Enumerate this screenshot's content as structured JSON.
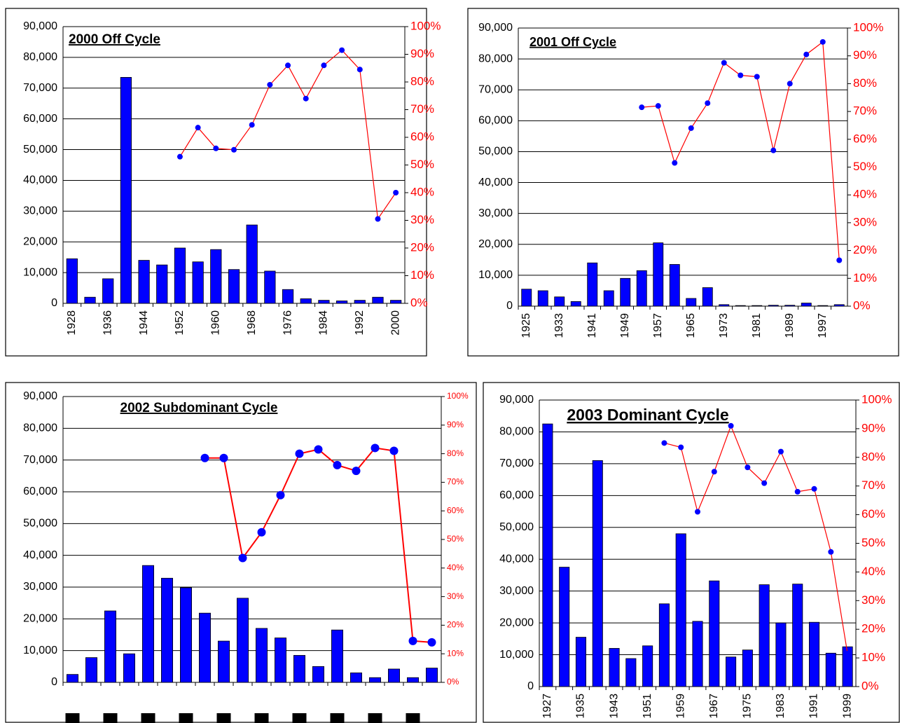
{
  "chart_data": [
    {
      "type": "combo",
      "title": "2000 Off Cycle",
      "categories": [
        "1928",
        null,
        "1936",
        null,
        "1944",
        null,
        "1952",
        null,
        "1960",
        null,
        "1968",
        null,
        "1976",
        null,
        "1984",
        null,
        "1992",
        null,
        "2000"
      ],
      "series": [
        {
          "color": "#0000ff",
          "values": [
            14500,
            2000,
            8000,
            73500,
            14000,
            12500,
            18000,
            13500,
            17500,
            11000,
            25500,
            10500,
            4500,
            1500,
            1000,
            800,
            1000,
            2000,
            1000
          ]
        },
        {
          "color": "#ff0000",
          "axis": "y2",
          "values": [
            null,
            null,
            null,
            null,
            null,
            null,
            53,
            63.5,
            56,
            55.5,
            64.5,
            79,
            86,
            74,
            86,
            91.5,
            84.5,
            30.5,
            40
          ]
        }
      ],
      "ylim": [
        0,
        90000
      ],
      "yticks": [
        0,
        {
          "value": 10000,
          "label": "10,000"
        },
        {
          "value": 20000,
          "label": "20,000"
        },
        {
          "value": 30000,
          "label": "30,000"
        },
        {
          "value": 40000,
          "label": "40,000"
        },
        {
          "value": 50000,
          "label": "50,000"
        },
        {
          "value": 60000,
          "label": "60,000"
        },
        {
          "value": 70000,
          "label": "70,000"
        },
        {
          "value": 80000,
          "label": "80,000"
        },
        {
          "value": 90000,
          "label": "90,000"
        }
      ],
      "y2lim": [
        0,
        100
      ],
      "y2ticks": [
        {
          "value": 0,
          "label": "0%"
        },
        {
          "value": 10,
          "label": "10%"
        },
        {
          "value": 20,
          "label": "20%"
        },
        {
          "value": 30,
          "label": "30%"
        },
        {
          "value": 40,
          "label": "40%"
        },
        {
          "value": 50,
          "label": "50%"
        },
        {
          "value": 60,
          "label": "60%"
        },
        {
          "value": 70,
          "label": "70%"
        },
        {
          "value": 80,
          "label": "80%"
        },
        {
          "value": 90,
          "label": "90%"
        },
        {
          "value": 100,
          "label": "100%"
        }
      ],
      "grid": true
    },
    {
      "type": "combo",
      "title": "2001 Off Cycle",
      "categories": [
        "1925",
        null,
        "1933",
        null,
        "1941",
        null,
        "1949",
        null,
        "1957",
        null,
        "1965",
        null,
        "1973",
        null,
        "1981",
        null,
        "1989",
        null,
        "1997",
        null
      ],
      "series": [
        {
          "color": "#0000ff",
          "values": [
            5500,
            5000,
            3000,
            1500,
            14000,
            5000,
            9000,
            11500,
            20500,
            13500,
            2500,
            6000,
            500,
            200,
            200,
            300,
            300,
            1000,
            200,
            500
          ]
        },
        {
          "color": "#ff0000",
          "axis": "y2",
          "values": [
            null,
            null,
            null,
            null,
            null,
            null,
            null,
            71.5,
            72,
            51.5,
            64,
            73,
            87.5,
            83,
            82.5,
            56,
            80,
            90.5,
            95,
            16.5
          ]
        }
      ],
      "ylim": [
        0,
        90000
      ],
      "yticks": [
        0,
        {
          "value": 10000,
          "label": "10,000"
        },
        {
          "value": 20000,
          "label": "20,000"
        },
        {
          "value": 30000,
          "label": "30,000"
        },
        {
          "value": 40000,
          "label": "40,000"
        },
        {
          "value": 50000,
          "label": "50,000"
        },
        {
          "value": 60000,
          "label": "60,000"
        },
        {
          "value": 70000,
          "label": "70,000"
        },
        {
          "value": 80000,
          "label": "80,000"
        },
        {
          "value": 90000,
          "label": "90,000"
        }
      ],
      "y2lim": [
        0,
        100
      ],
      "y2ticks": [
        {
          "value": 0,
          "label": "0%"
        },
        {
          "value": 10,
          "label": "10%"
        },
        {
          "value": 20,
          "label": "20%"
        },
        {
          "value": 30,
          "label": "30%"
        },
        {
          "value": 40,
          "label": "40%"
        },
        {
          "value": 50,
          "label": "50%"
        },
        {
          "value": 60,
          "label": "60%"
        },
        {
          "value": 70,
          "label": "70%"
        },
        {
          "value": 80,
          "label": "80%"
        },
        {
          "value": 90,
          "label": "90%"
        },
        {
          "value": 100,
          "label": "100%"
        }
      ],
      "grid": true
    },
    {
      "type": "combo",
      "title": "2002 Subdominant Cycle",
      "categories": [
        null,
        null,
        null,
        null,
        null,
        null,
        null,
        null,
        null,
        null,
        null,
        null,
        null,
        null,
        null,
        null,
        null,
        null,
        null,
        null
      ],
      "series": [
        {
          "color": "#0000ff",
          "values": [
            2500,
            7800,
            22500,
            9000,
            36800,
            32800,
            29800,
            21800,
            13000,
            26500,
            17000,
            14000,
            8500,
            5000,
            16500,
            3000,
            1500,
            4200,
            1500,
            4500
          ]
        },
        {
          "color": "#ff0000",
          "axis": "y2",
          "values": [
            null,
            null,
            null,
            null,
            null,
            null,
            null,
            78.5,
            78.5,
            43.5,
            52.5,
            65.5,
            80,
            81.5,
            76,
            74,
            82,
            81,
            14.5,
            14
          ]
        }
      ],
      "ylim": [
        0,
        90000
      ],
      "yticks": [
        0,
        {
          "value": 10000,
          "label": "10,000"
        },
        {
          "value": 20000,
          "label": "20,000"
        },
        {
          "value": 30000,
          "label": "30,000"
        },
        {
          "value": 40000,
          "label": "40,000"
        },
        {
          "value": 50000,
          "label": "50,000"
        },
        {
          "value": 60000,
          "label": "60,000"
        },
        {
          "value": 70000,
          "label": "70,000"
        },
        {
          "value": 80000,
          "label": "80,000"
        },
        {
          "value": 90000,
          "label": "90,000"
        }
      ],
      "y2lim": [
        0,
        100
      ],
      "y2ticks": [
        {
          "value": 0,
          "label": "0%"
        },
        {
          "value": 10,
          "label": "10%"
        },
        {
          "value": 20,
          "label": "20%"
        },
        {
          "value": 30,
          "label": "30%"
        },
        {
          "value": 40,
          "label": "40%"
        },
        {
          "value": 50,
          "label": "50%"
        },
        {
          "value": 60,
          "label": "60%"
        },
        {
          "value": 70,
          "label": "70%"
        },
        {
          "value": 80,
          "label": "80%"
        },
        {
          "value": 90,
          "label": "90%"
        },
        {
          "value": 100,
          "label": "100%"
        }
      ],
      "grid": true
    },
    {
      "type": "combo",
      "title": "2003 Dominant Cycle",
      "categories": [
        "1927",
        null,
        "1935",
        null,
        "1943",
        null,
        "1951",
        null,
        "1959",
        null,
        "1967",
        null,
        "1975",
        null,
        "1983",
        null,
        "1991",
        null,
        "1999"
      ],
      "series": [
        {
          "color": "#0000ff",
          "values": [
            82500,
            37500,
            15500,
            71000,
            12000,
            8800,
            12800,
            26000,
            48000,
            20500,
            33200,
            9300,
            11500,
            32000,
            20000,
            32200,
            20200,
            10500,
            12500
          ]
        },
        {
          "color": "#ff0000",
          "axis": "y2",
          "values": [
            null,
            null,
            null,
            null,
            null,
            null,
            null,
            85,
            83.5,
            61,
            75,
            91,
            76.5,
            71,
            82,
            68,
            69,
            47,
            11.5
          ]
        }
      ],
      "ylim": [
        0,
        90000
      ],
      "yticks": [
        0,
        {
          "value": 10000,
          "label": "10,000"
        },
        {
          "value": 20000,
          "label": "20,000"
        },
        {
          "value": 30000,
          "label": "30,000"
        },
        {
          "value": 40000,
          "label": "40,000"
        },
        {
          "value": 50000,
          "label": "50,000"
        },
        {
          "value": 60000,
          "label": "60,000"
        },
        {
          "value": 70000,
          "label": "70,000"
        },
        {
          "value": 80000,
          "label": "80,000"
        },
        {
          "value": 90000,
          "label": "90,000"
        }
      ],
      "y2lim": [
        0,
        100
      ],
      "y2ticks": [
        {
          "value": 0,
          "label": "0%"
        },
        {
          "value": 10,
          "label": "10%"
        },
        {
          "value": 20,
          "label": "20%"
        },
        {
          "value": 30,
          "label": "30%"
        },
        {
          "value": 40,
          "label": "40%"
        },
        {
          "value": 50,
          "label": "50%"
        },
        {
          "value": 60,
          "label": "60%"
        },
        {
          "value": 70,
          "label": "70%"
        },
        {
          "value": 80,
          "label": "80%"
        },
        {
          "value": 90,
          "label": "90%"
        },
        {
          "value": 100,
          "label": "100%"
        }
      ],
      "grid": true
    }
  ]
}
